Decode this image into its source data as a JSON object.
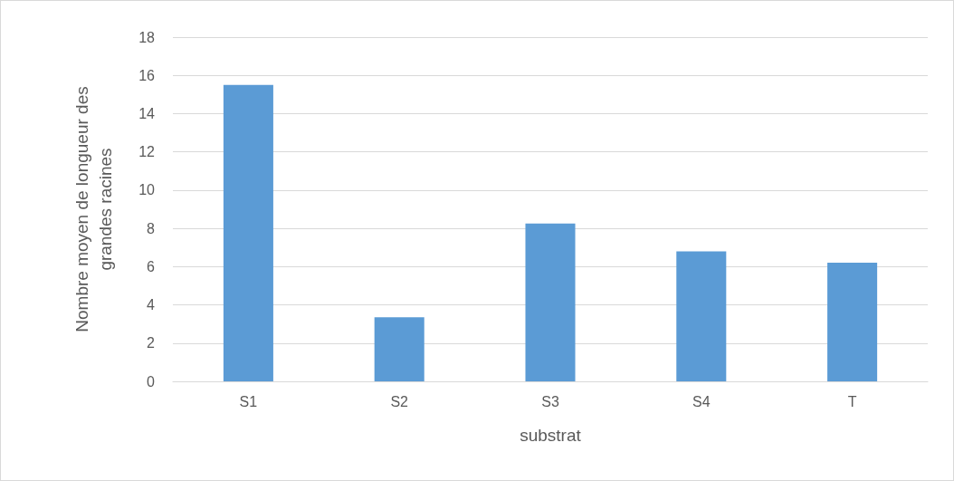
{
  "chart_data": {
    "type": "bar",
    "xlabel": "substrat",
    "ylabel": "Nombre moyen de longueur des grandes racines",
    "categories": [
      "S1",
      "S2",
      "S3",
      "S4",
      "T"
    ],
    "values": [
      15.5,
      3.35,
      8.25,
      6.8,
      6.2
    ],
    "color": "#5b9bd5",
    "ylim": [
      0,
      18
    ],
    "yticks": [
      0,
      2,
      4,
      6,
      8,
      10,
      12,
      14,
      16,
      18
    ],
    "grid": "y"
  }
}
